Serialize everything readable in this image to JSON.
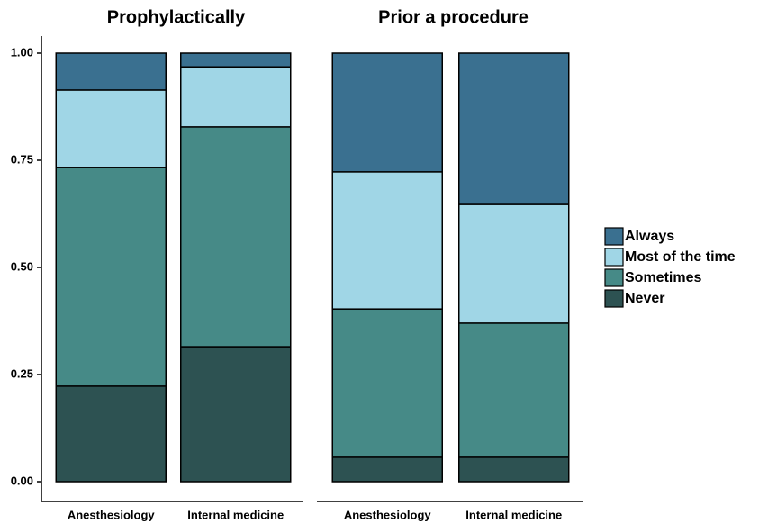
{
  "chart_data": [
    {
      "type": "bar",
      "stacked": true,
      "title": "Prophylactically",
      "categories": [
        "Anesthesiology",
        "Internal medicine"
      ],
      "series": [
        {
          "name": "Always",
          "color": "#3a7090",
          "values": [
            0.086,
            0.032
          ]
        },
        {
          "name": "Most of the time",
          "color": "#a0d6e6",
          "values": [
            0.181,
            0.14
          ]
        },
        {
          "name": "Sometimes",
          "color": "#468a87",
          "values": [
            0.51,
            0.513
          ]
        },
        {
          "name": "Never",
          "color": "#2d5252",
          "values": [
            0.223,
            0.315
          ]
        }
      ],
      "ylim": [
        0,
        1
      ],
      "yticks": [
        {
          "value": 0,
          "label": "0.00"
        },
        {
          "value": 0.25,
          "label": "0.25"
        },
        {
          "value": 0.5,
          "label": "0.50"
        },
        {
          "value": 0.75,
          "label": "0.75"
        },
        {
          "value": 1,
          "label": "1.00"
        }
      ],
      "legend": "right"
    },
    {
      "type": "bar",
      "stacked": true,
      "title": "Prior a procedure",
      "categories": [
        "Anesthesiology",
        "Internal medicine"
      ],
      "series": [
        {
          "name": "Always",
          "color": "#3a7090",
          "values": [
            0.277,
            0.353
          ]
        },
        {
          "name": "Most of the time",
          "color": "#a0d6e6",
          "values": [
            0.32,
            0.277
          ]
        },
        {
          "name": "Sometimes",
          "color": "#468a87",
          "values": [
            0.346,
            0.313
          ]
        },
        {
          "name": "Never",
          "color": "#2d5252",
          "values": [
            0.057,
            0.057
          ]
        }
      ],
      "ylim": [
        0,
        1
      ]
    }
  ]
}
